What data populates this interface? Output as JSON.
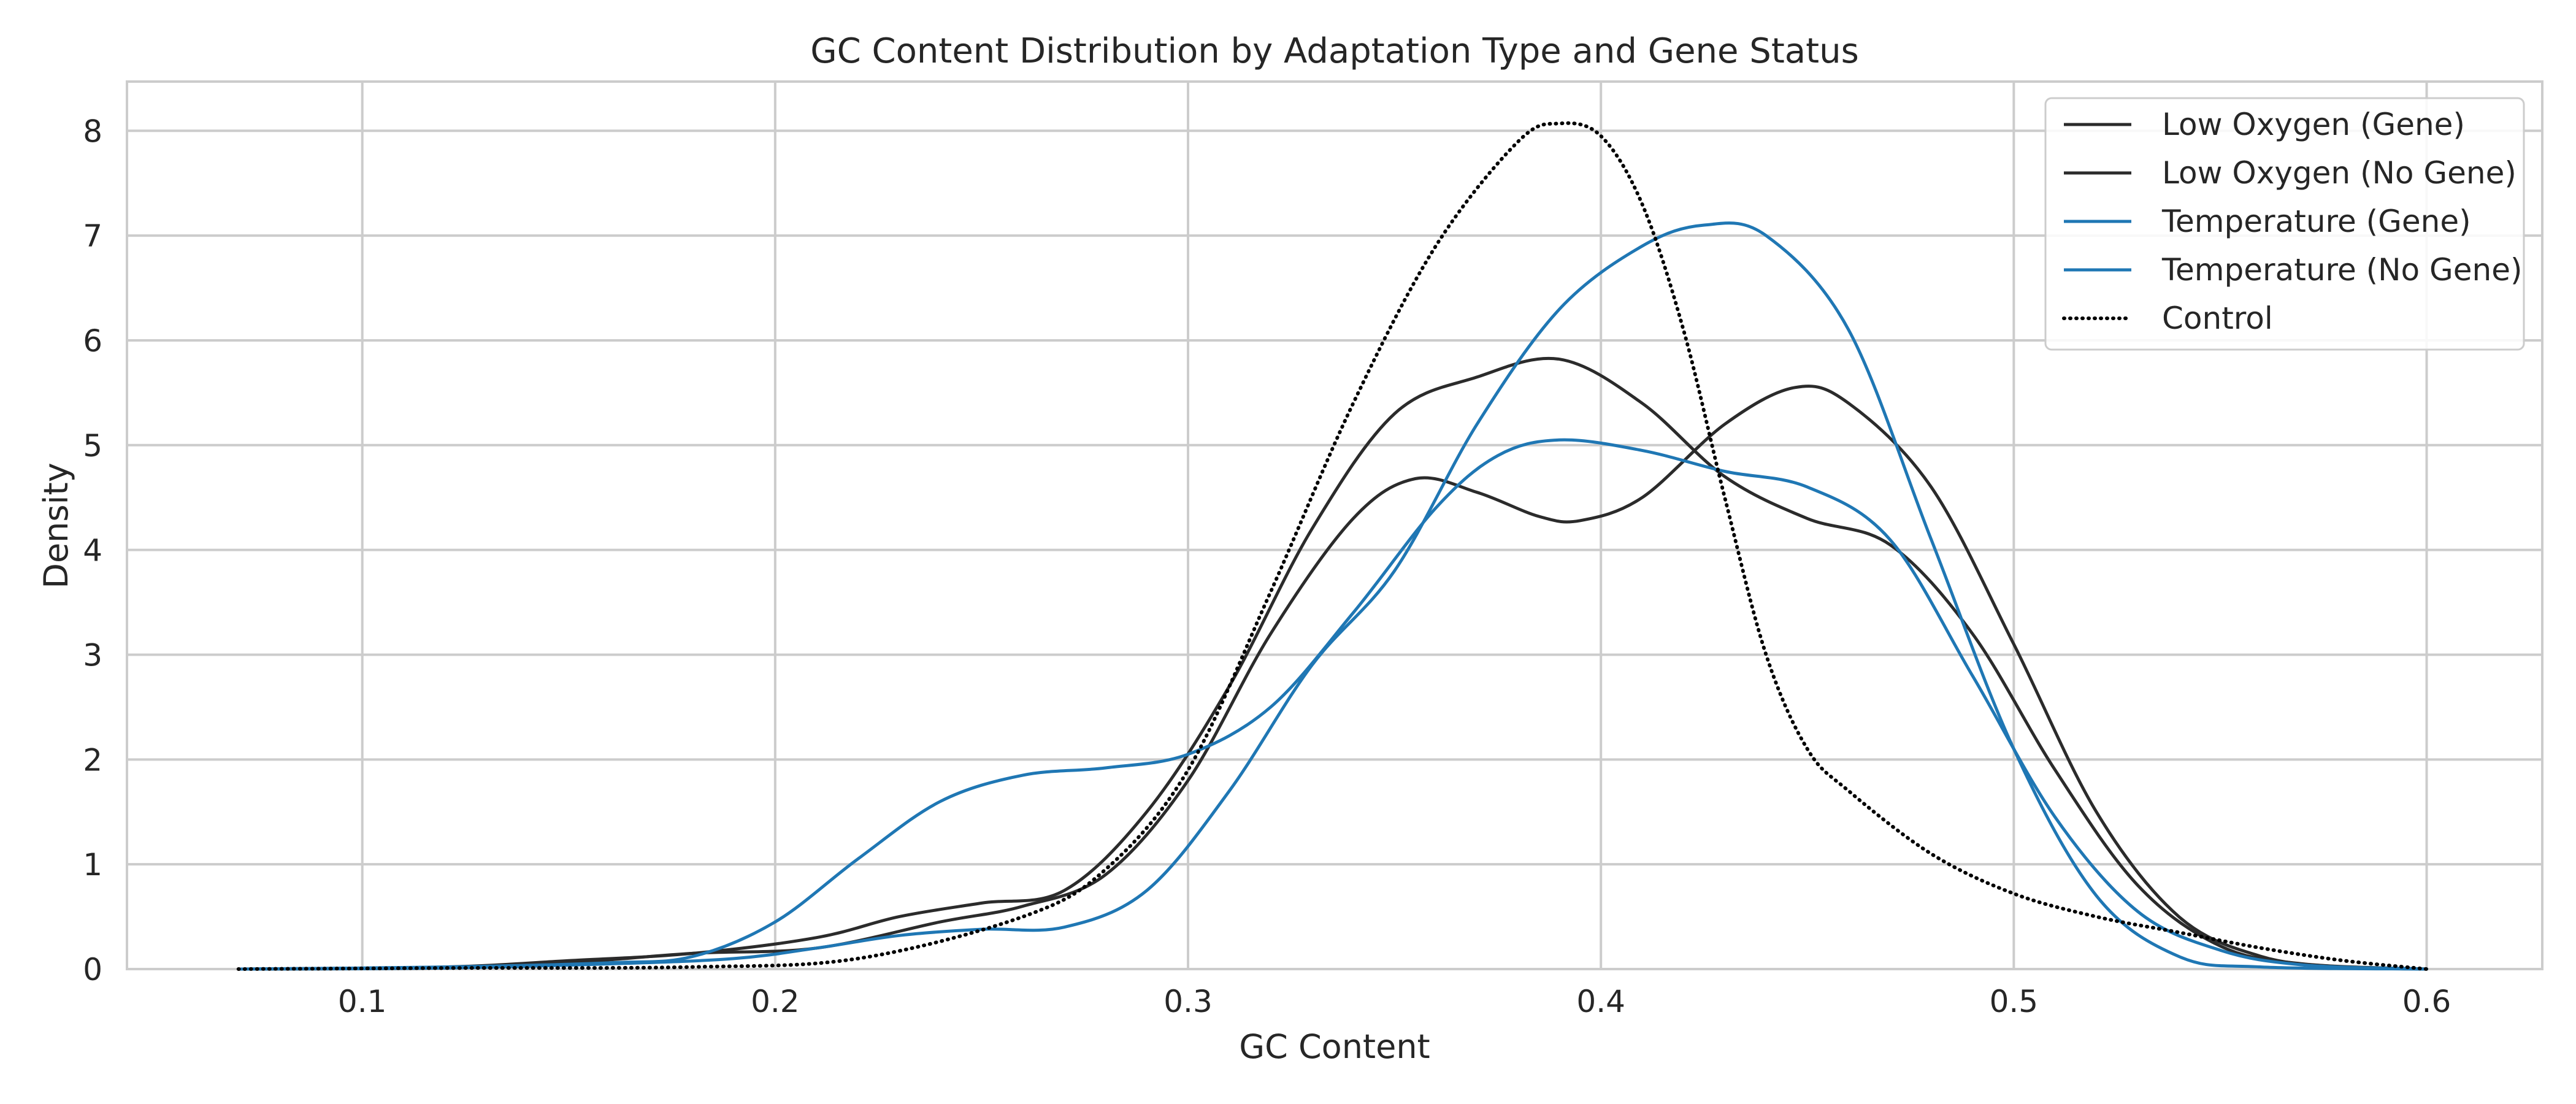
{
  "chart_data": {
    "type": "line",
    "title": "GC Content Distribution by Adaptation Type and Gene Status",
    "xlabel": "GC Content",
    "ylabel": "Density",
    "xlim": [
      0.043,
      0.628
    ],
    "ylim": [
      0,
      8.47
    ],
    "xticks": [
      0.1,
      0.2,
      0.3,
      0.4,
      0.5,
      0.6
    ],
    "yticks": [
      0,
      1,
      2,
      3,
      4,
      5,
      6,
      7,
      8
    ],
    "xtick_labels": [
      "0.1",
      "0.2",
      "0.3",
      "0.4",
      "0.5",
      "0.6"
    ],
    "ytick_labels": [
      "0",
      "1",
      "2",
      "3",
      "4",
      "5",
      "6",
      "7",
      "8"
    ],
    "grid": true,
    "legend_position": "top-right",
    "series": [
      {
        "name": "Low Oxygen (Gene)",
        "color": "#2b2b2b",
        "style": "solid",
        "points": [
          [
            0.07,
            0
          ],
          [
            0.12,
            0.01
          ],
          [
            0.15,
            0.06
          ],
          [
            0.18,
            0.15
          ],
          [
            0.21,
            0.2
          ],
          [
            0.24,
            0.45
          ],
          [
            0.26,
            0.6
          ],
          [
            0.28,
            0.9
          ],
          [
            0.3,
            1.8
          ],
          [
            0.32,
            3.2
          ],
          [
            0.34,
            4.3
          ],
          [
            0.355,
            4.68
          ],
          [
            0.37,
            4.55
          ],
          [
            0.385,
            4.32
          ],
          [
            0.395,
            4.28
          ],
          [
            0.41,
            4.5
          ],
          [
            0.43,
            5.2
          ],
          [
            0.447,
            5.55
          ],
          [
            0.46,
            5.4
          ],
          [
            0.48,
            4.6
          ],
          [
            0.5,
            3.1
          ],
          [
            0.52,
            1.5
          ],
          [
            0.54,
            0.5
          ],
          [
            0.56,
            0.12
          ],
          [
            0.58,
            0.02
          ],
          [
            0.6,
            0
          ]
        ]
      },
      {
        "name": "Low Oxygen (No Gene)",
        "color": "#2b2b2b",
        "style": "solid",
        "points": [
          [
            0.07,
            0
          ],
          [
            0.12,
            0.02
          ],
          [
            0.15,
            0.08
          ],
          [
            0.18,
            0.15
          ],
          [
            0.21,
            0.3
          ],
          [
            0.23,
            0.5
          ],
          [
            0.25,
            0.63
          ],
          [
            0.27,
            0.75
          ],
          [
            0.29,
            1.5
          ],
          [
            0.31,
            2.7
          ],
          [
            0.33,
            4.2
          ],
          [
            0.35,
            5.3
          ],
          [
            0.37,
            5.65
          ],
          [
            0.39,
            5.82
          ],
          [
            0.41,
            5.4
          ],
          [
            0.43,
            4.7
          ],
          [
            0.45,
            4.3
          ],
          [
            0.47,
            4.05
          ],
          [
            0.49,
            3.2
          ],
          [
            0.51,
            1.9
          ],
          [
            0.53,
            0.8
          ],
          [
            0.55,
            0.22
          ],
          [
            0.57,
            0.05
          ],
          [
            0.6,
            0
          ]
        ]
      },
      {
        "name": "Temperature (Gene)",
        "color": "#1f77b4",
        "style": "solid",
        "points": [
          [
            0.07,
            0
          ],
          [
            0.12,
            0.01
          ],
          [
            0.16,
            0.05
          ],
          [
            0.19,
            0.1
          ],
          [
            0.21,
            0.2
          ],
          [
            0.23,
            0.32
          ],
          [
            0.25,
            0.38
          ],
          [
            0.27,
            0.4
          ],
          [
            0.29,
            0.75
          ],
          [
            0.31,
            1.7
          ],
          [
            0.33,
            2.9
          ],
          [
            0.35,
            3.8
          ],
          [
            0.37,
            5.2
          ],
          [
            0.39,
            6.3
          ],
          [
            0.41,
            6.9
          ],
          [
            0.425,
            7.1
          ],
          [
            0.44,
            7.0
          ],
          [
            0.46,
            6.1
          ],
          [
            0.48,
            4.1
          ],
          [
            0.5,
            2.1
          ],
          [
            0.52,
            0.7
          ],
          [
            0.54,
            0.12
          ],
          [
            0.56,
            0.02
          ],
          [
            0.6,
            0
          ]
        ]
      },
      {
        "name": "Temperature (No Gene)",
        "color": "#1f77b4",
        "style": "solid",
        "points": [
          [
            0.07,
            0
          ],
          [
            0.12,
            0.02
          ],
          [
            0.16,
            0.06
          ],
          [
            0.18,
            0.12
          ],
          [
            0.2,
            0.45
          ],
          [
            0.22,
            1.05
          ],
          [
            0.24,
            1.6
          ],
          [
            0.26,
            1.85
          ],
          [
            0.28,
            1.92
          ],
          [
            0.3,
            2.05
          ],
          [
            0.32,
            2.5
          ],
          [
            0.34,
            3.4
          ],
          [
            0.36,
            4.4
          ],
          [
            0.375,
            4.9
          ],
          [
            0.39,
            5.05
          ],
          [
            0.41,
            4.95
          ],
          [
            0.43,
            4.75
          ],
          [
            0.45,
            4.6
          ],
          [
            0.47,
            4.1
          ],
          [
            0.49,
            2.8
          ],
          [
            0.51,
            1.45
          ],
          [
            0.53,
            0.55
          ],
          [
            0.55,
            0.18
          ],
          [
            0.57,
            0.04
          ],
          [
            0.6,
            0
          ]
        ]
      },
      {
        "name": "Control",
        "color": "#000000",
        "style": "dotted",
        "points": [
          [
            0.07,
            0
          ],
          [
            0.12,
            0.01
          ],
          [
            0.18,
            0.02
          ],
          [
            0.22,
            0.1
          ],
          [
            0.26,
            0.5
          ],
          [
            0.28,
            0.95
          ],
          [
            0.3,
            1.9
          ],
          [
            0.32,
            3.6
          ],
          [
            0.34,
            5.4
          ],
          [
            0.36,
            6.9
          ],
          [
            0.38,
            7.9
          ],
          [
            0.39,
            8.07
          ],
          [
            0.4,
            7.95
          ],
          [
            0.41,
            7.3
          ],
          [
            0.42,
            6.1
          ],
          [
            0.43,
            4.5
          ],
          [
            0.44,
            3.0
          ],
          [
            0.45,
            2.1
          ],
          [
            0.46,
            1.7
          ],
          [
            0.48,
            1.1
          ],
          [
            0.5,
            0.72
          ],
          [
            0.52,
            0.5
          ],
          [
            0.54,
            0.35
          ],
          [
            0.56,
            0.2
          ],
          [
            0.58,
            0.08
          ],
          [
            0.6,
            0
          ]
        ]
      }
    ]
  }
}
